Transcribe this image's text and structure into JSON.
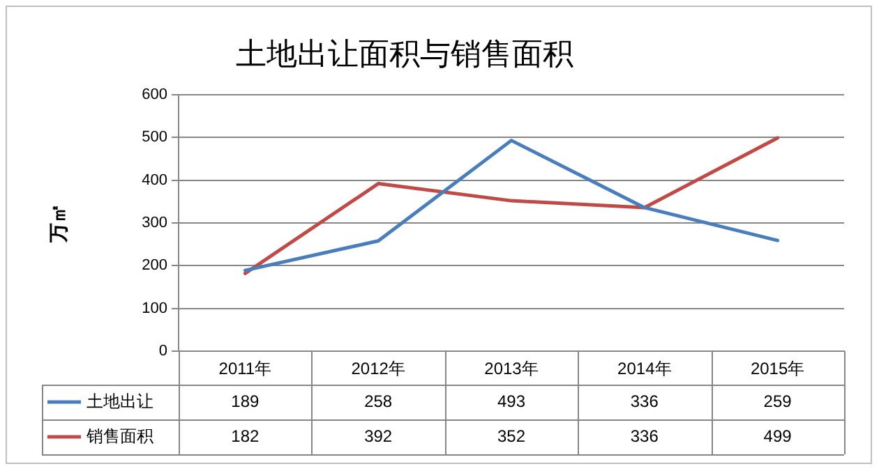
{
  "chart_data": {
    "type": "line",
    "title": "土地出让面积与销售面积",
    "ylabel": "万㎡",
    "categories": [
      "2011年",
      "2012年",
      "2013年",
      "2014年",
      "2015年"
    ],
    "series": [
      {
        "name": "土地出让",
        "color": "#4a7ebb",
        "values": [
          189,
          258,
          493,
          336,
          259
        ]
      },
      {
        "name": "销售面积",
        "color": "#be4b48",
        "values": [
          182,
          392,
          352,
          336,
          499
        ]
      }
    ],
    "ylim": [
      0,
      600
    ],
    "yticks": [
      0,
      100,
      200,
      300,
      400,
      500,
      600
    ],
    "grid": "y",
    "legend": "bottom",
    "data_labels": true,
    "marker": "none",
    "line_style": "solid"
  }
}
